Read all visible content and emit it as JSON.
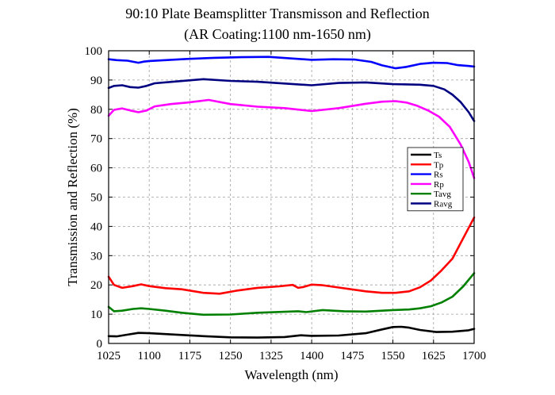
{
  "chart_data": {
    "type": "line",
    "title": "90:10 Plate Beamsplitter Transmisson and Reflection",
    "subtitle": "(AR Coating:1100 nm-1650 nm)",
    "xlabel": "Wavelength (nm)",
    "ylabel": "Transmission and Reflection (%)",
    "xlim": [
      1025,
      1700
    ],
    "ylim": [
      0,
      100
    ],
    "xticks": [
      1025,
      1100,
      1175,
      1250,
      1325,
      1400,
      1475,
      1550,
      1625,
      1700
    ],
    "yticks": [
      0,
      10,
      20,
      30,
      40,
      50,
      60,
      70,
      80,
      90,
      100
    ],
    "grid": true,
    "legend_position": "right",
    "series": [
      {
        "name": "Ts",
        "color": "#000000",
        "x": [
          1025,
          1040,
          1060,
          1080,
          1100,
          1130,
          1160,
          1200,
          1250,
          1300,
          1350,
          1380,
          1400,
          1450,
          1500,
          1530,
          1550,
          1565,
          1580,
          1600,
          1630,
          1660,
          1690,
          1700
        ],
        "y": [
          2.5,
          2.4,
          3.0,
          3.6,
          3.5,
          3.2,
          2.9,
          2.5,
          2.1,
          2.0,
          2.2,
          2.8,
          2.6,
          2.7,
          3.5,
          4.8,
          5.6,
          5.7,
          5.4,
          4.6,
          3.9,
          4.0,
          4.5,
          5.0
        ]
      },
      {
        "name": "Tp",
        "color": "#ff0000",
        "x": [
          1025,
          1035,
          1050,
          1070,
          1085,
          1100,
          1130,
          1160,
          1200,
          1230,
          1260,
          1300,
          1340,
          1365,
          1375,
          1385,
          1400,
          1420,
          1450,
          1500,
          1530,
          1555,
          1580,
          1600,
          1620,
          1640,
          1660,
          1680,
          1700
        ],
        "y": [
          22.8,
          20.0,
          19.0,
          19.6,
          20.2,
          19.6,
          18.9,
          18.5,
          17.3,
          17.0,
          18.0,
          19.0,
          19.5,
          20.0,
          19.0,
          19.3,
          20.1,
          19.9,
          19.1,
          17.8,
          17.3,
          17.3,
          17.8,
          19.2,
          21.5,
          25.0,
          29.0,
          36.0,
          43.0
        ]
      },
      {
        "name": "Rs",
        "color": "#0000ff",
        "x": [
          1025,
          1040,
          1060,
          1080,
          1090,
          1100,
          1130,
          1170,
          1220,
          1270,
          1320,
          1360,
          1400,
          1440,
          1480,
          1510,
          1530,
          1555,
          1575,
          1600,
          1625,
          1650,
          1670,
          1690,
          1700
        ],
        "y": [
          97.1,
          96.8,
          96.6,
          95.9,
          96.3,
          96.5,
          96.8,
          97.2,
          97.6,
          97.8,
          97.9,
          97.4,
          96.9,
          97.1,
          97.0,
          96.2,
          95.0,
          94.0,
          94.5,
          95.5,
          95.9,
          95.8,
          95.1,
          94.8,
          94.6
        ]
      },
      {
        "name": "Rp",
        "color": "#ff00ff",
        "x": [
          1025,
          1035,
          1050,
          1065,
          1080,
          1095,
          1110,
          1140,
          1170,
          1210,
          1250,
          1300,
          1350,
          1400,
          1450,
          1500,
          1530,
          1555,
          1575,
          1595,
          1615,
          1635,
          1655,
          1675,
          1690,
          1700
        ],
        "y": [
          77.8,
          79.8,
          80.3,
          79.6,
          79.0,
          79.6,
          81.0,
          81.8,
          82.3,
          83.2,
          81.8,
          80.9,
          80.4,
          79.4,
          80.4,
          81.9,
          82.6,
          82.8,
          82.3,
          81.2,
          79.6,
          77.5,
          74.0,
          68.0,
          62.0,
          56.5
        ]
      },
      {
        "name": "Tavg",
        "color": "#008000",
        "x": [
          1025,
          1035,
          1050,
          1070,
          1085,
          1100,
          1130,
          1160,
          1200,
          1250,
          1300,
          1350,
          1375,
          1390,
          1420,
          1460,
          1500,
          1550,
          1580,
          1600,
          1620,
          1640,
          1660,
          1680,
          1700
        ],
        "y": [
          12.5,
          11.0,
          11.2,
          11.8,
          12.0,
          11.8,
          11.2,
          10.5,
          9.8,
          9.9,
          10.5,
          10.8,
          11.0,
          10.7,
          11.4,
          11.0,
          10.9,
          11.4,
          11.6,
          12.0,
          12.7,
          14.0,
          16.0,
          19.5,
          24.0
        ]
      },
      {
        "name": "Ravg",
        "color": "#000080",
        "x": [
          1025,
          1035,
          1050,
          1065,
          1080,
          1095,
          1110,
          1150,
          1200,
          1250,
          1300,
          1350,
          1400,
          1450,
          1500,
          1550,
          1600,
          1625,
          1645,
          1660,
          1675,
          1690,
          1700
        ],
        "y": [
          87.3,
          88.0,
          88.2,
          87.6,
          87.4,
          88.0,
          88.9,
          89.5,
          90.3,
          89.7,
          89.4,
          88.8,
          88.2,
          89.0,
          89.2,
          88.6,
          88.4,
          88.0,
          86.8,
          85.0,
          82.5,
          79.0,
          76.0
        ]
      }
    ]
  }
}
